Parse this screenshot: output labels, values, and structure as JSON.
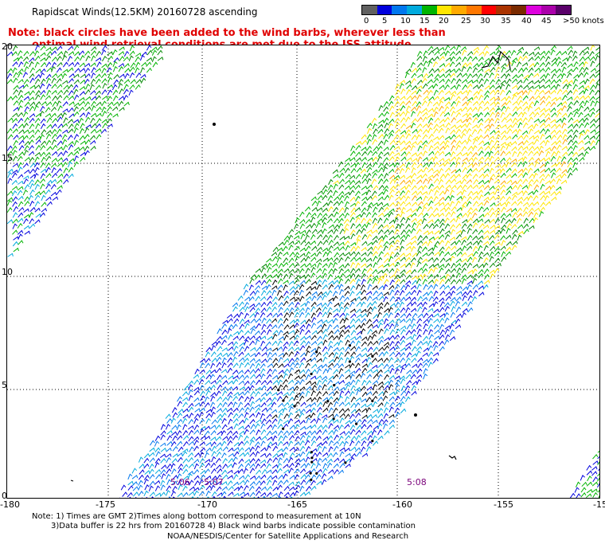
{
  "header": {
    "title": "Rapidscat Winds(12.5KM) 20160728 ascending",
    "note_line1": "Note: black circles have been added to the wind barbs, wherever less than",
    "note_line2": "optimal wind retrieval conditions are met due to the ISS attitude changes."
  },
  "legend": {
    "colors": [
      "#606060",
      "#0000dd",
      "#0077ee",
      "#00aadd",
      "#00b400",
      "#ffe600",
      "#ffaa00",
      "#ff7700",
      "#ff0000",
      "#aa3300",
      "#7a2a00",
      "#dd00dd",
      "#aa00aa",
      "#5a006a"
    ],
    "labels": [
      "0",
      "5",
      "10",
      "15",
      "20",
      "25",
      "30",
      "35",
      "40",
      "45",
      ">50 knots"
    ]
  },
  "map": {
    "lat_labels": [
      "20",
      "15",
      "10",
      "5",
      "0"
    ],
    "lon_labels": [
      "-180",
      "-175",
      "-170",
      "-165",
      "-160",
      "-155",
      "-15"
    ],
    "time_labels": [
      "5:06",
      "5:07",
      "5:08"
    ]
  },
  "footer": {
    "line1": "Note: 1) Times are GMT 2)Times along bottom correspond to measurement at 10N",
    "line2": "3)Data buffer is 22 hrs from 20160728 4) Black wind barbs indicate possible contamination",
    "line3": "NOAA/NESDIS/Center for Satellite Applications and Research"
  }
}
